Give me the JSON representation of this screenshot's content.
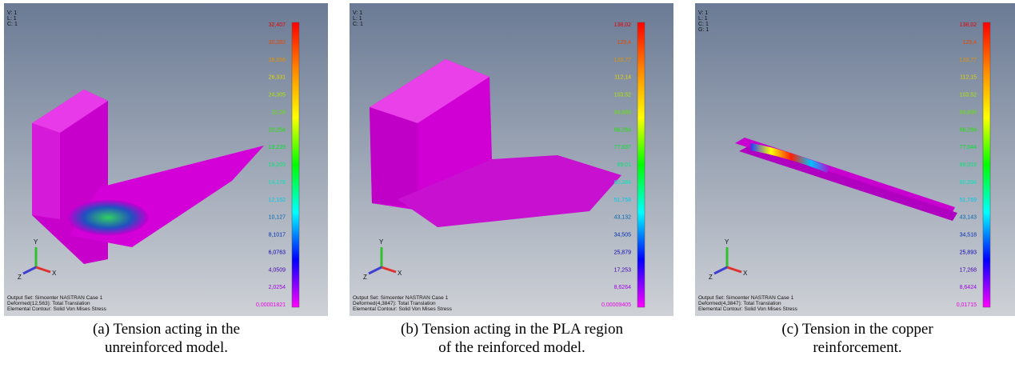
{
  "panels": [
    {
      "info": [
        "V: 1",
        "L: 1",
        "C: 1"
      ],
      "legend": [
        "32,407",
        "30,382",
        "28,356",
        "26,331",
        "24,305",
        "22,28",
        "20,254",
        "18,229",
        "16,203",
        "14,178",
        "12,152",
        "10,127",
        "8,1017",
        "6,0763",
        "4,0509",
        "2,0254",
        "0,00001821"
      ],
      "triad": {
        "x": "X",
        "y": "Y",
        "z": "Z"
      },
      "footer": [
        "Output Set: Simcenter NASTRAN Case 1",
        "Deformed(12,563): Total Translation",
        "Elemental Contour: Solid Von Mises Stress"
      ],
      "caption": [
        "(a) Tension acting in the",
        "unreinforced model."
      ]
    },
    {
      "info": [
        "V: 1",
        "L: 1",
        "C: 1"
      ],
      "legend": [
        "138,02",
        "129,4",
        "120,77",
        "112,14",
        "103,52",
        "94,889",
        "86,263",
        "77,637",
        "69,01",
        "60,384",
        "51,758",
        "43,132",
        "34,505",
        "25,879",
        "17,253",
        "8,6264",
        "0,00009405"
      ],
      "triad": {
        "x": "X",
        "y": "Y",
        "z": "Z"
      },
      "footer": [
        "Output Set: Simcenter NASTRAN Case 1",
        "Deformed(4,3847): Total Translation",
        "Elemental Contour: Solid Von Mises Stress"
      ],
      "caption": [
        "(b) Tension acting in the PLA region",
        "of the reinforced model."
      ]
    },
    {
      "info": [
        "V: 1",
        "L: 1",
        "C: 1",
        "G: 1"
      ],
      "legend": [
        "138,02",
        "129,4",
        "120,77",
        "112,15",
        "103,52",
        "94,895",
        "86,269",
        "77,644",
        "69,019",
        "60,394",
        "51,769",
        "43,143",
        "34,518",
        "25,893",
        "17,268",
        "8,6424",
        "0,01715"
      ],
      "triad": {
        "x": "X",
        "y": "Y",
        "z": "Z"
      },
      "footer": [
        "Output Set: Simcenter NASTRAN Case 1",
        "Deformed(4,3847): Total Translation",
        "Elemental Contour: Solid Von Mises Stress"
      ],
      "caption": [
        "(c) Tension in the copper",
        "reinforcement."
      ]
    }
  ]
}
